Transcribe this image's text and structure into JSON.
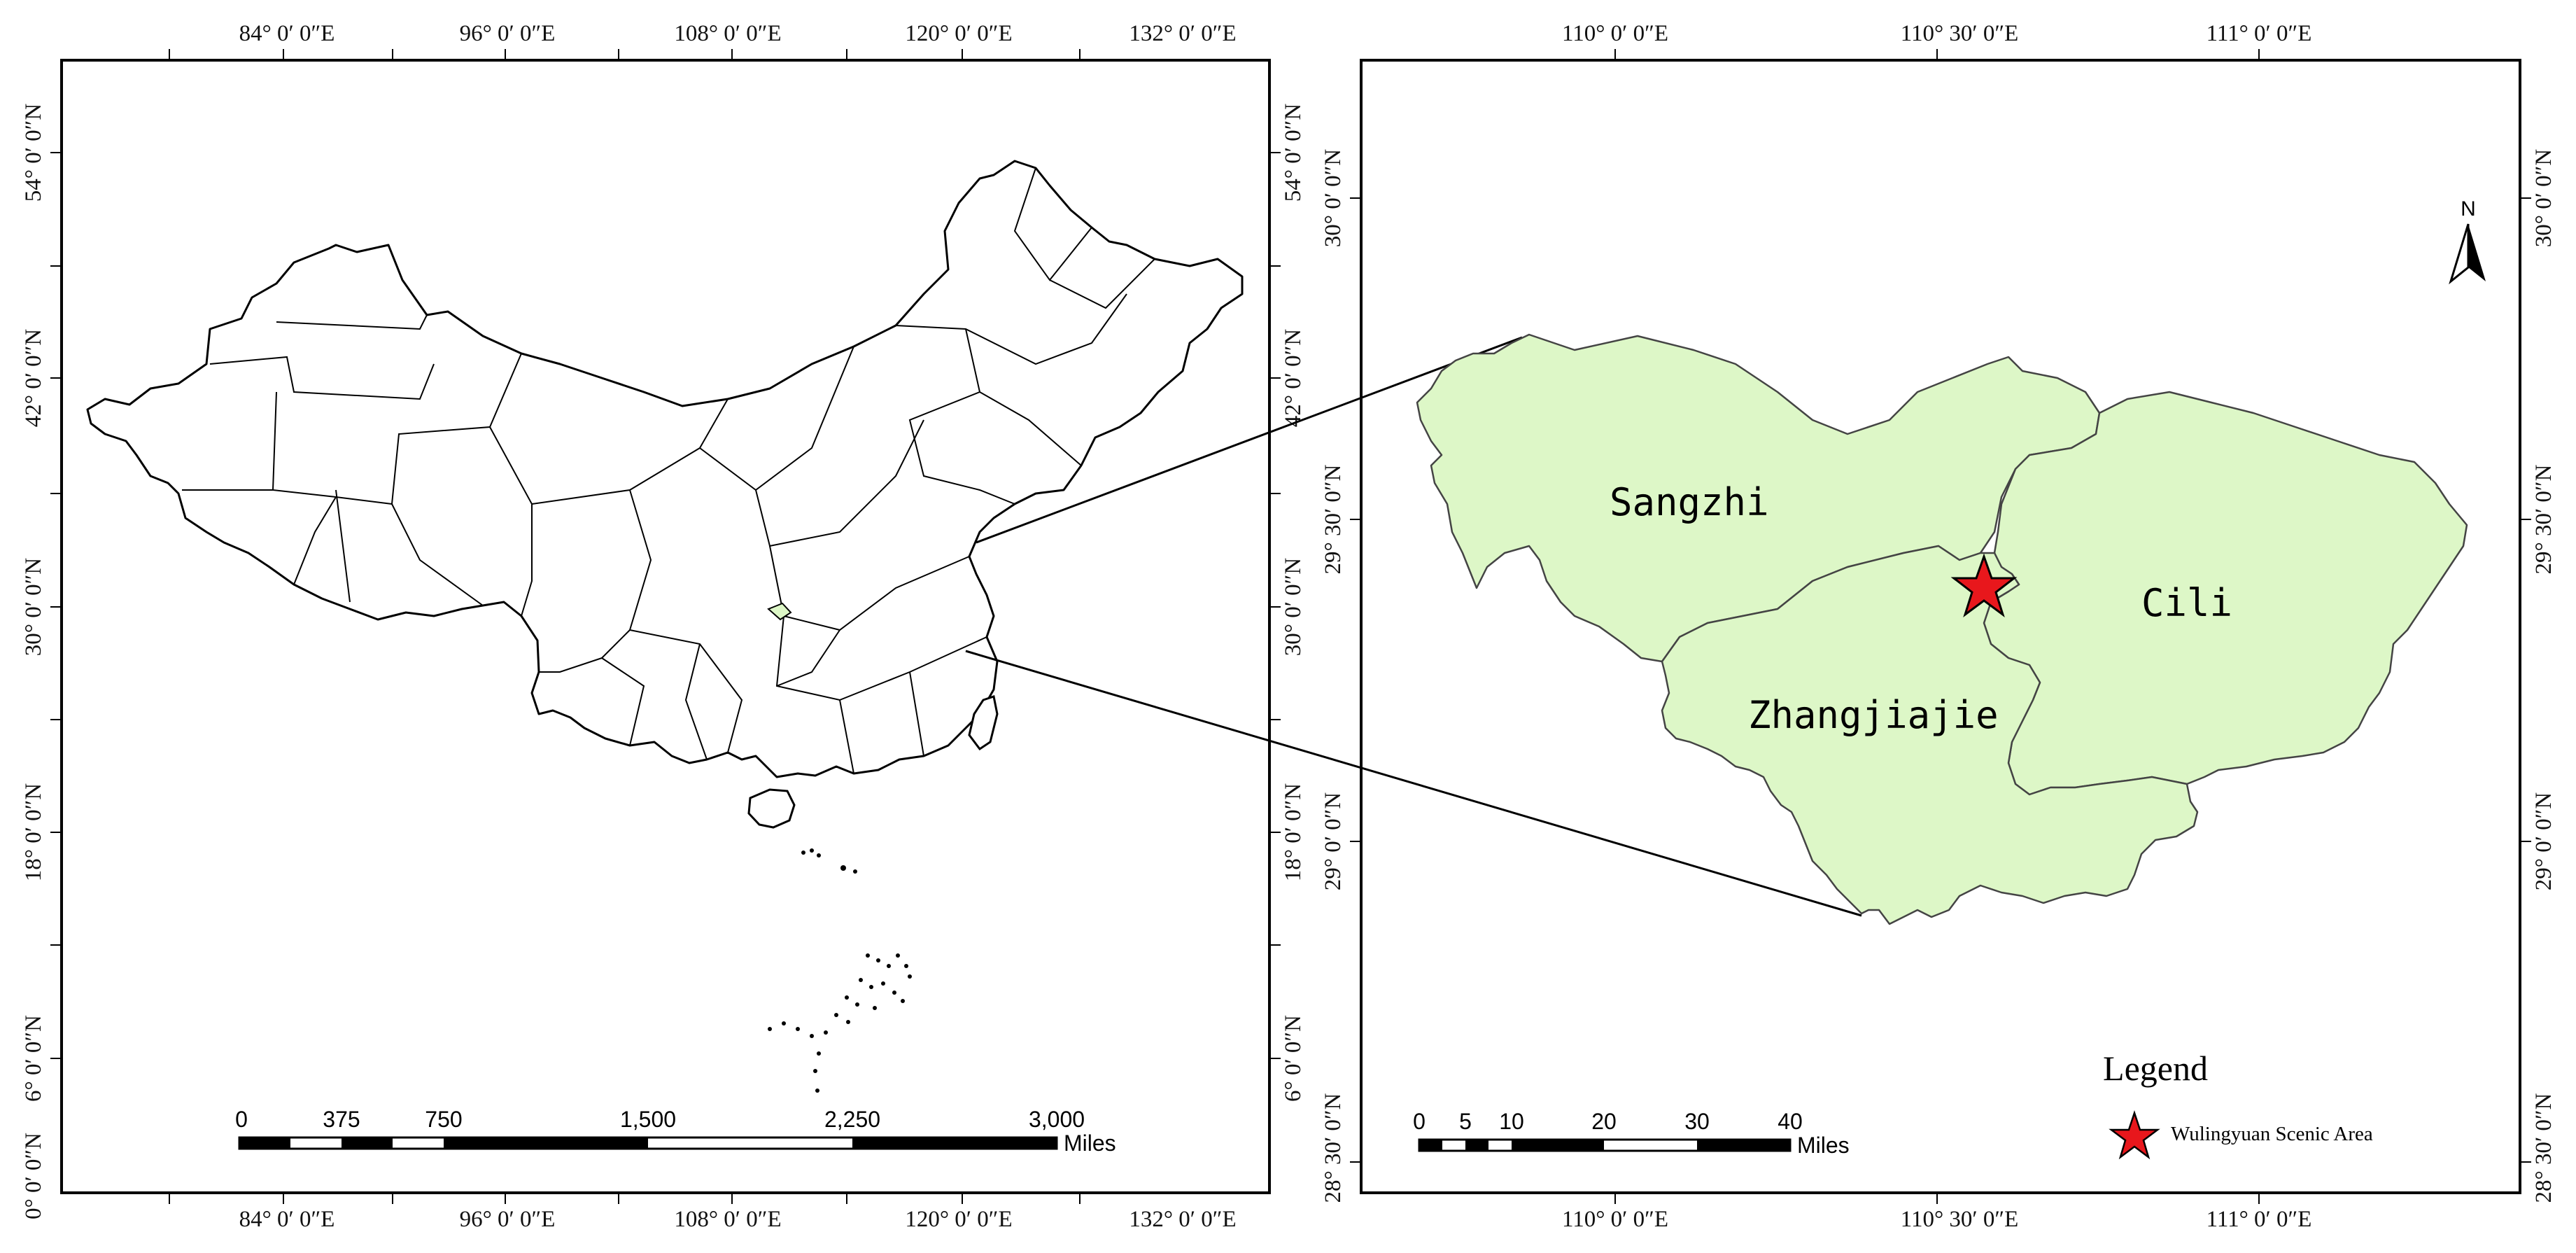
{
  "left_map": {
    "top_lon_labels": [
      "84° 0′ 0″E",
      "96° 0′ 0″E",
      "108° 0′ 0″E",
      "120° 0′ 0″E",
      "132° 0′ 0″E"
    ],
    "bottom_lon_labels": [
      "84° 0′ 0″E",
      "96° 0′ 0″E",
      "108° 0′ 0″E",
      "120° 0′ 0″E",
      "132° 0′ 0″E"
    ],
    "left_lat_labels": [
      "54° 0′ 0″N",
      "42° 0′ 0″N",
      "30° 0′ 0″N",
      "18° 0′ 0″N",
      "6° 0′ 0″N",
      "0° 0′ 0″N"
    ],
    "right_lat_labels": [
      "54° 0′ 0″N",
      "42° 0′ 0″N",
      "30° 0′ 0″N",
      "18° 0′ 0″N",
      "6° 0′ 0″N"
    ],
    "scale_bar": {
      "ticks": [
        "0",
        "375",
        "750",
        "1,500",
        "2,250",
        "3,000"
      ],
      "unit": "Miles"
    }
  },
  "right_map": {
    "top_lon_labels": [
      "110° 0′ 0″E",
      "110° 30′ 0″E",
      "111° 0′ 0″E"
    ],
    "bottom_lon_labels": [
      "110° 0′ 0″E",
      "110° 30′ 0″E",
      "111° 0′ 0″E"
    ],
    "left_lat_labels": [
      "30° 0′ 0″N",
      "29° 30′ 0″N",
      "29° 0′ 0″N",
      "28° 30′ 0″N"
    ],
    "right_lat_labels": [
      "30° 0′ 0″N",
      "29° 30′ 0″N",
      "29° 0′ 0″N",
      "28° 30′ 0″N"
    ],
    "regions": [
      "Sangzhi",
      "Cili",
      "Zhangjiajie"
    ],
    "region_fill": "#ddf7c7",
    "north_arrow_label": "N",
    "scale_bar": {
      "ticks": [
        "0",
        "5",
        "10",
        "20",
        "30",
        "40"
      ],
      "unit": "Miles"
    },
    "legend": {
      "title": "Legend",
      "item_label": "Wulingyuan Scenic Area",
      "marker_color": "#e8171c"
    }
  }
}
